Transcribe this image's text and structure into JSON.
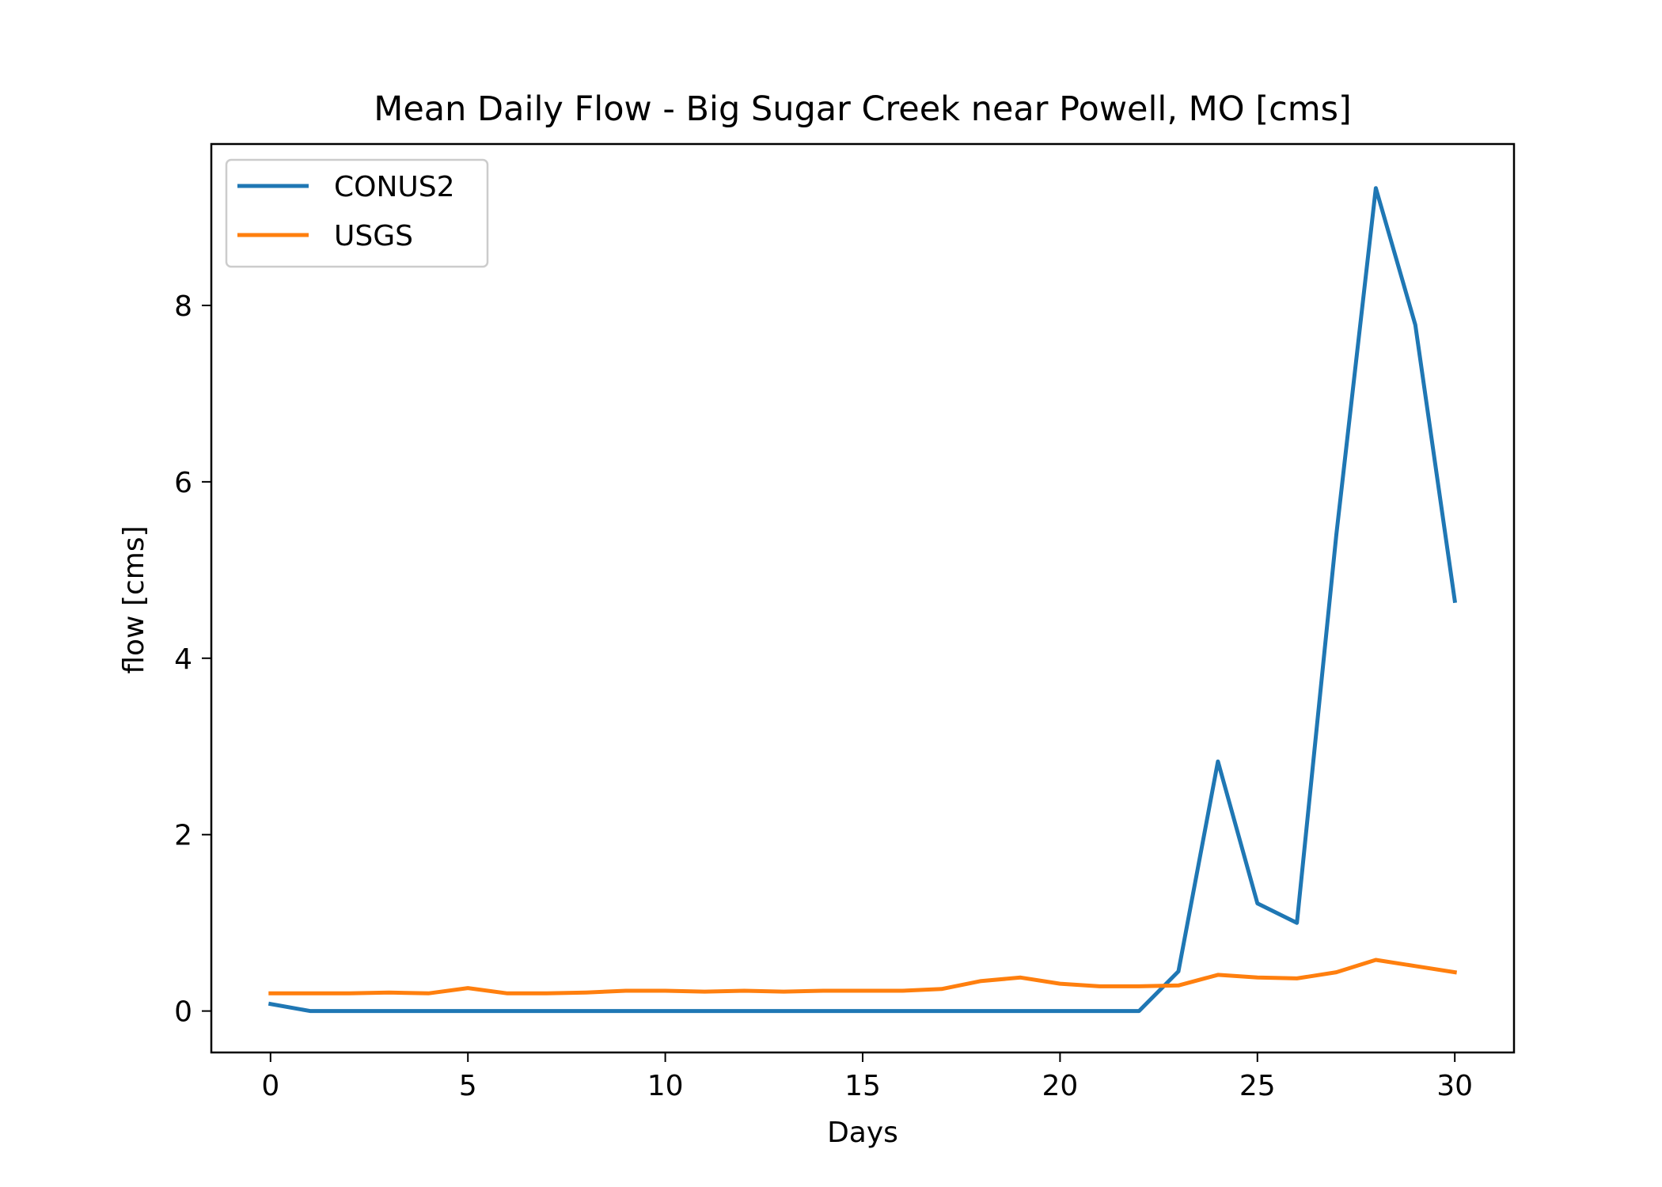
{
  "chart_data": {
    "type": "line",
    "title": "Mean Daily Flow - Big Sugar Creek near Powell, MO [cms]",
    "xlabel": "Days",
    "ylabel": "flow [cms]",
    "xlim": [
      -1.5,
      31.5
    ],
    "ylim": [
      -0.47,
      9.83
    ],
    "xticks": [
      0,
      5,
      10,
      15,
      20,
      25,
      30
    ],
    "yticks": [
      0,
      2,
      4,
      6,
      8
    ],
    "grid": false,
    "legend_position": "top-left",
    "x": [
      0,
      1,
      2,
      3,
      4,
      5,
      6,
      7,
      8,
      9,
      10,
      11,
      12,
      13,
      14,
      15,
      16,
      17,
      18,
      19,
      20,
      21,
      22,
      23,
      24,
      25,
      26,
      27,
      28,
      29,
      30
    ],
    "series": [
      {
        "name": "CONUS2",
        "color": "#1f77b4",
        "values": [
          0.08,
          0.0,
          0.0,
          0.0,
          0.0,
          0.0,
          0.0,
          0.0,
          0.0,
          0.0,
          0.0,
          0.0,
          0.0,
          0.0,
          0.0,
          0.0,
          0.0,
          0.0,
          0.0,
          0.0,
          0.0,
          0.0,
          0.0,
          0.45,
          2.83,
          1.22,
          1.0,
          5.4,
          9.33,
          7.78,
          4.65
        ]
      },
      {
        "name": "USGS",
        "color": "#ff7f0e",
        "values": [
          0.2,
          0.2,
          0.2,
          0.21,
          0.2,
          0.26,
          0.2,
          0.2,
          0.21,
          0.23,
          0.23,
          0.22,
          0.23,
          0.22,
          0.23,
          0.23,
          0.23,
          0.25,
          0.34,
          0.38,
          0.31,
          0.28,
          0.28,
          0.29,
          0.41,
          0.38,
          0.37,
          0.44,
          0.58,
          0.51,
          0.44
        ]
      }
    ]
  }
}
